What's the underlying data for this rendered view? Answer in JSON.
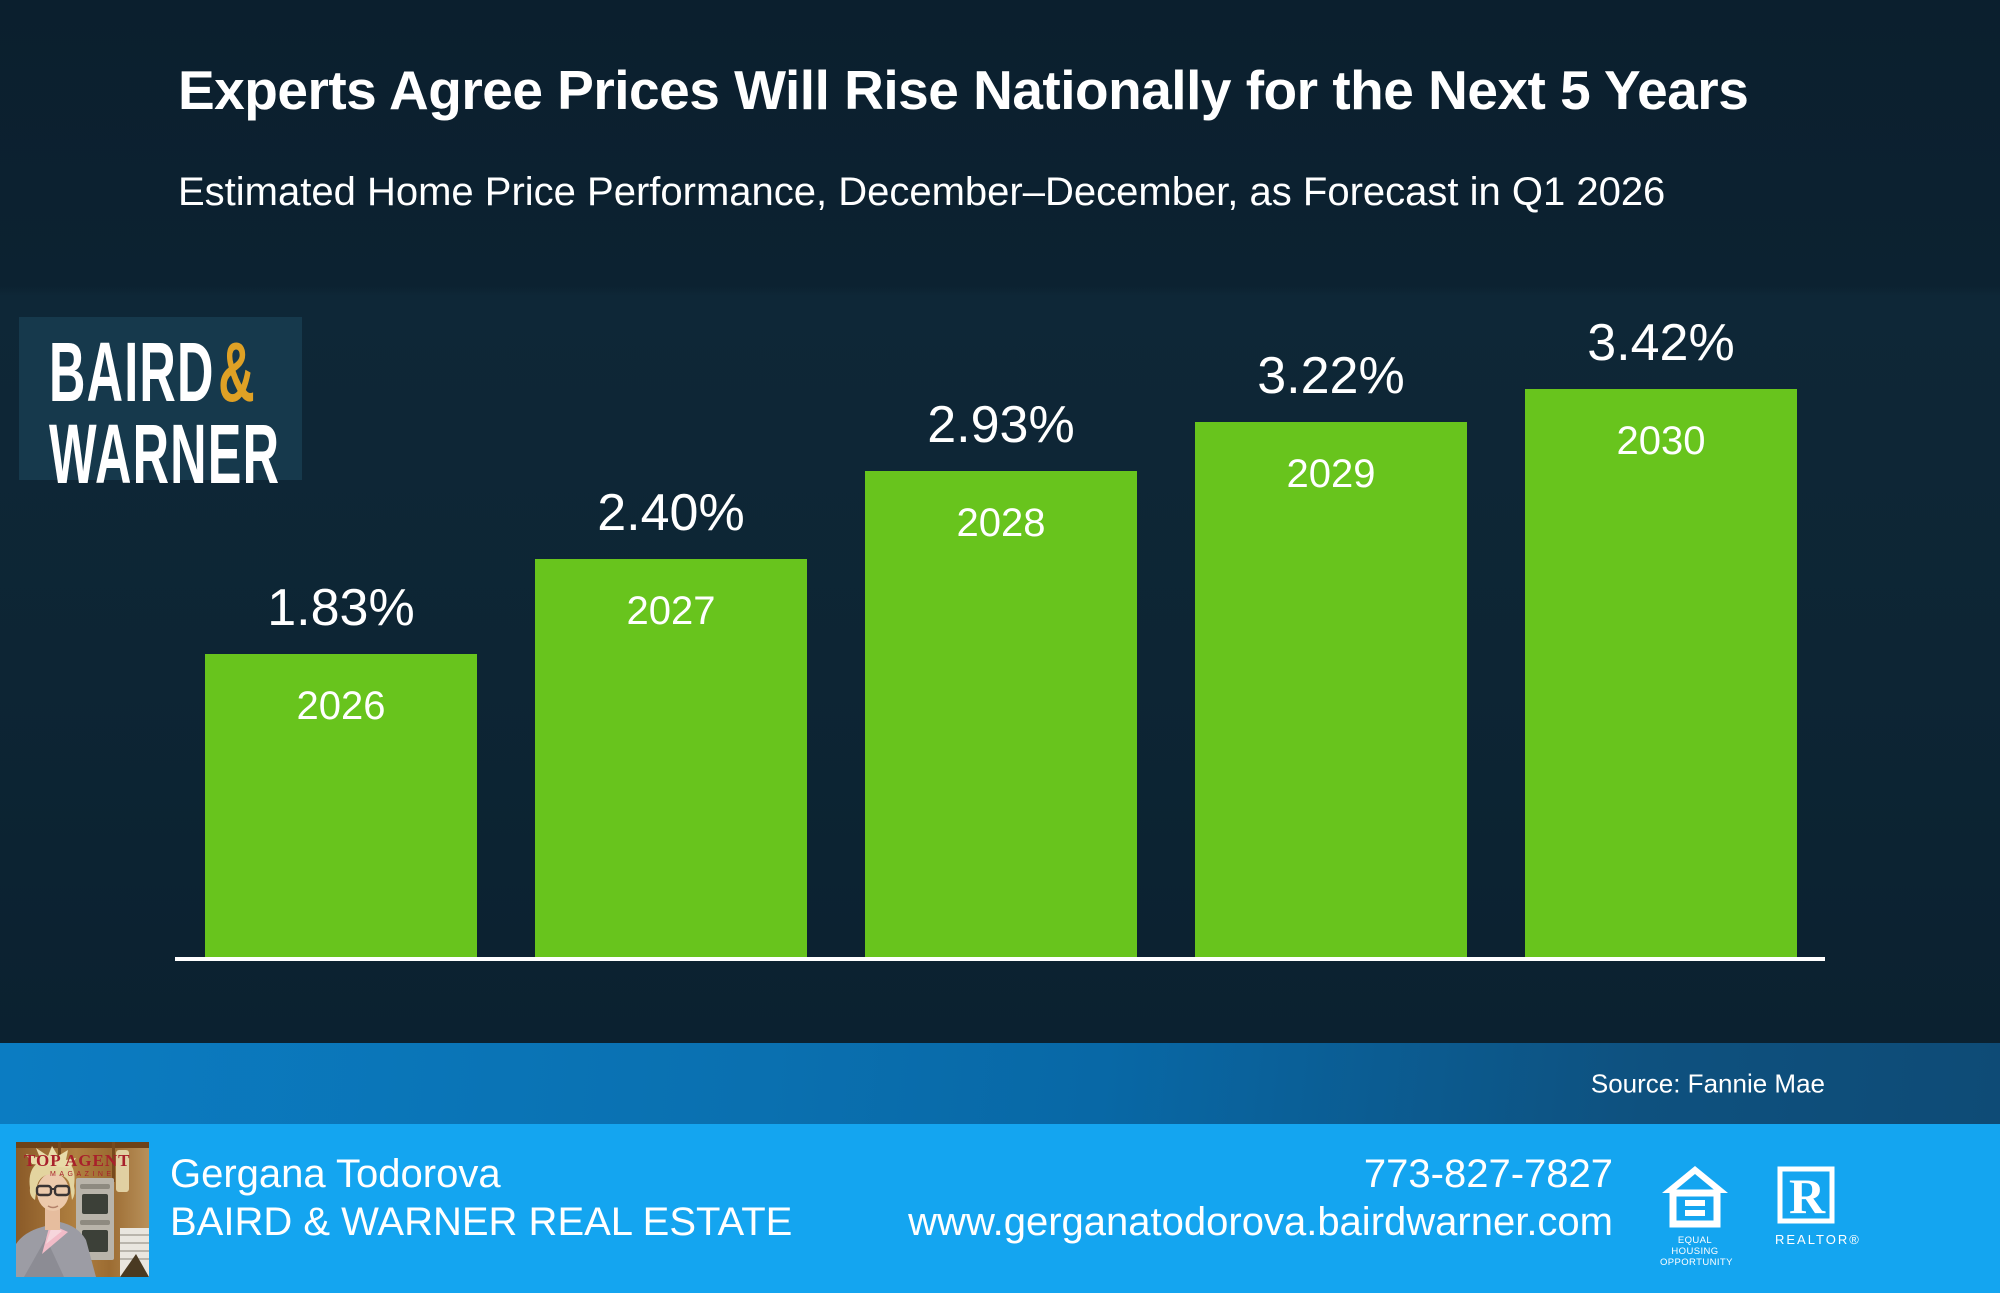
{
  "title": "Experts Agree Prices Will Rise Nationally for the Next 5 Years",
  "subtitle": "Estimated Home Price Performance, December–December, as Forecast in Q1 2026",
  "logo": {
    "word1": "BAIRD",
    "amp": "&",
    "word2": "WARNER"
  },
  "source": "Source: Fannie Mae",
  "chart_data": {
    "type": "bar",
    "categories": [
      "2026",
      "2027",
      "2028",
      "2029",
      "2030"
    ],
    "values": [
      1.83,
      2.4,
      2.93,
      3.22,
      3.42
    ],
    "value_labels": [
      "1.83%",
      "2.40%",
      "2.93%",
      "3.22%",
      "3.42%"
    ],
    "title": "Estimated Home Price Performance, December–December, as Forecast in Q1 2026",
    "xlabel": "",
    "ylabel": "",
    "ylim": [
      0,
      3.6
    ],
    "grid": false,
    "legend": false,
    "bar_color": "#68c41d",
    "axis_line_color": "#ffffff",
    "label_color": "#ffffff"
  },
  "footer": {
    "agent_name": "Gergana Todorova",
    "company": "BAIRD & WARNER REAL ESTATE",
    "phone": "773-827-7827",
    "website": "www.gerganatodorova.bairdwarner.com",
    "photo_badge_line1": "TOP AGENT",
    "photo_badge_line2": "MAGAZINE",
    "equal_housing_line1": "EQUAL HOUSING",
    "equal_housing_line2": "OPPORTUNITY",
    "realtor_label": "REALTOR®"
  },
  "colors": {
    "background_navy": "#0c2231",
    "bar_green": "#68c41d",
    "logo_teal": "#16394c",
    "logo_gold": "#dfa125",
    "source_band_blue_left": "#0b7cc2",
    "source_band_blue_right": "#0e4b76",
    "footer_blue": "#14a5f0",
    "text_white": "#ffffff",
    "badge_red": "#a8202b"
  }
}
